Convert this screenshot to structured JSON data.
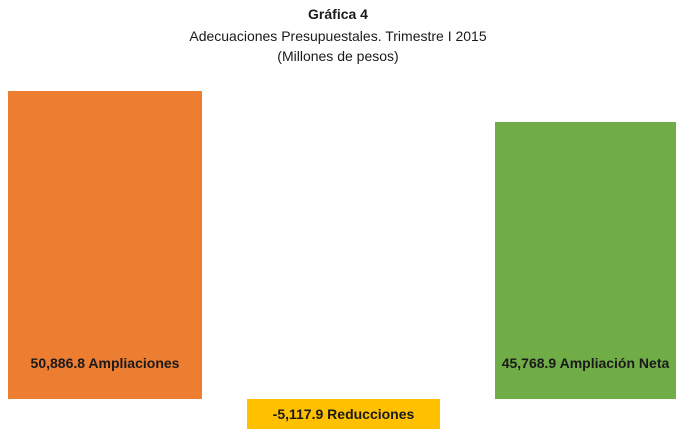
{
  "chart_data": {
    "type": "bar",
    "title": "Gráfica 4",
    "subtitle": "Adecuaciones Presupuestales.  Trimestre I 2015",
    "unit_label": "(Millones de pesos)",
    "categories": [
      "Ampliaciones",
      "Reducciones",
      "Ampliación Neta"
    ],
    "values": [
      50886.8,
      -5117.9,
      45768.9
    ],
    "value_labels": [
      "50,886.8",
      "-5,117.9",
      "45,768.9"
    ],
    "colors": [
      "#ed7d31",
      "#ffc000",
      "#70ad47"
    ],
    "ylim": [
      -5200,
      51000
    ]
  }
}
